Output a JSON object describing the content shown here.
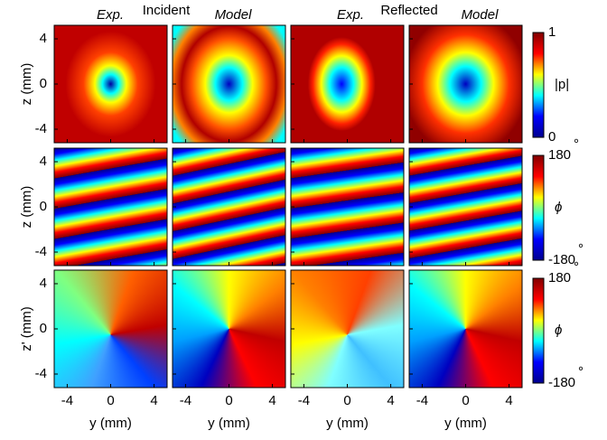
{
  "header": {
    "groups": [
      "Incident",
      "Reflected"
    ],
    "sources": [
      "Exp.",
      "Model",
      "Exp.",
      "Model"
    ]
  },
  "axes": {
    "x_label": "y (mm)",
    "y_labels": [
      "z (mm)",
      "z (mm)",
      "z' (mm)"
    ],
    "xlim": [
      -5.2,
      5.2
    ],
    "ylim": [
      -5.2,
      5.2
    ],
    "xticks": [
      -4,
      0,
      4
    ],
    "yticks": [
      -4,
      0,
      4
    ]
  },
  "colorbars": [
    {
      "label": "|p|",
      "lim": [
        0,
        1
      ],
      "ticks": [
        0,
        1
      ]
    },
    {
      "label": "ϕ",
      "lim": [
        -180,
        180
      ],
      "ticks": [
        -180,
        180
      ],
      "unit": "°"
    },
    {
      "label": "ϕ",
      "lim": [
        -180,
        180
      ],
      "ticks": [
        -180,
        180
      ],
      "unit": "°"
    }
  ]
}
